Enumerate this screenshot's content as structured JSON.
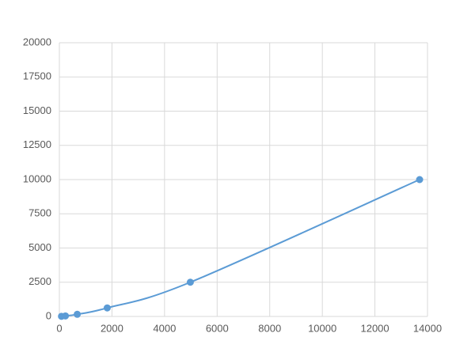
{
  "chart_data": {
    "type": "line",
    "smooth": true,
    "markers": true,
    "x": [
      80,
      230,
      680,
      1820,
      4980,
      13700
    ],
    "series": [
      {
        "color": "#5b9bd5",
        "values": [
          10,
          39,
          156,
          625,
          2500,
          10000
        ]
      }
    ],
    "xlim": [
      0,
      14000
    ],
    "xticks": [
      0,
      2000,
      4000,
      6000,
      8000,
      10000,
      12000,
      14000
    ],
    "ylim": [
      0,
      20000
    ],
    "yticks": [
      0,
      2500,
      5000,
      7500,
      10000,
      12500,
      15000,
      17500,
      20000
    ],
    "grid": true
  }
}
